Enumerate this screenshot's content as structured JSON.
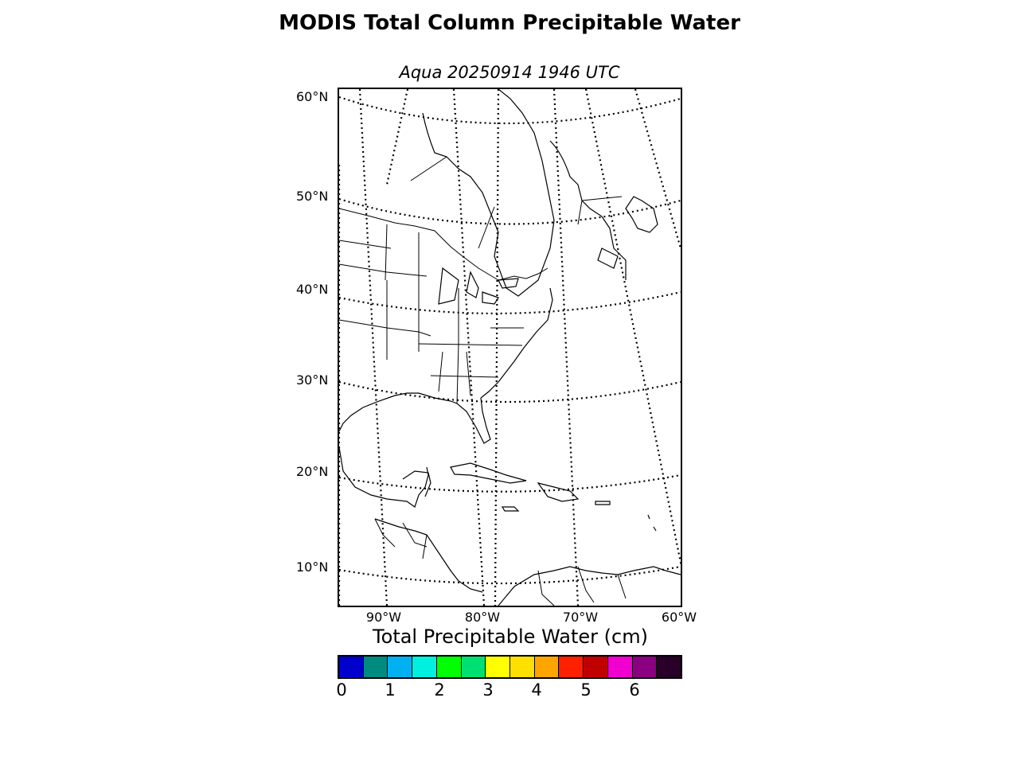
{
  "title": "MODIS Total Column Precipitable Water",
  "subtitle": "Aqua 20250914 1946 UTC",
  "map": {
    "lat_labels": [
      "60°N",
      "50°N",
      "40°N",
      "30°N",
      "20°N",
      "10°N"
    ],
    "lon_labels": [
      "90°W",
      "80°W",
      "70°W",
      "60°W"
    ]
  },
  "colorbar": {
    "label": "Total Precipitable Water (cm)",
    "ticks": [
      "0",
      "1",
      "2",
      "3",
      "4",
      "5",
      "6"
    ],
    "colors": [
      "#0000cd",
      "#008b80",
      "#00b0f0",
      "#00f0e0",
      "#00ff00",
      "#00e070",
      "#ffff00",
      "#ffe000",
      "#ffa500",
      "#ff2000",
      "#c00000",
      "#f000d0",
      "#8b0080",
      "#280028"
    ]
  }
}
